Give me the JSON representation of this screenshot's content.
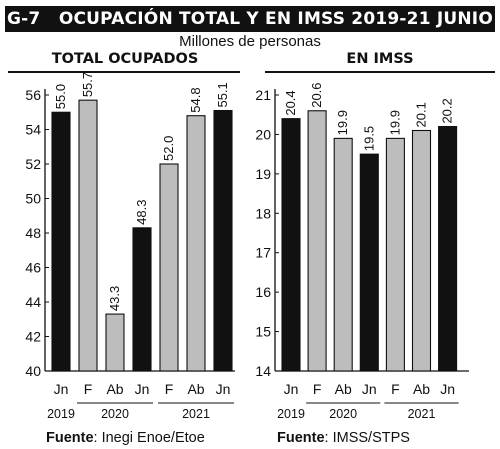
{
  "header": {
    "code": "G-7",
    "title": "OCUPACIÓN TOTAL Y EN IMSS 2019-21 JUNIO",
    "subtitle": "Millones de personas"
  },
  "colors": {
    "dark": "#111111",
    "light": "#bdbdbd",
    "outline": "#111111"
  },
  "chart_data": [
    {
      "type": "bar",
      "title": "TOTAL OCUPADOS",
      "categories": [
        "Jn",
        "F",
        "Ab",
        "Jn",
        "F",
        "Ab",
        "Jn"
      ],
      "values": [
        55.0,
        55.7,
        43.3,
        48.3,
        52.0,
        54.8,
        55.1
      ],
      "value_labels": [
        "55.0",
        "55.7",
        "43.3",
        "48.3",
        "52.0",
        "54.8",
        "55.1"
      ],
      "fill": [
        "dark",
        "light",
        "light",
        "dark",
        "light",
        "light",
        "dark"
      ],
      "ylim": [
        40,
        56
      ],
      "yticks": [
        40,
        42,
        44,
        46,
        48,
        50,
        52,
        54,
        56
      ],
      "year_groups": [
        {
          "label": "2019",
          "from": 0,
          "to": 0
        },
        {
          "label": "2020",
          "from": 1,
          "to": 3
        },
        {
          "label": "2021",
          "from": 4,
          "to": 6
        }
      ],
      "source_label": "Fuente",
      "source_text": ": Inegi Enoe/Etoe"
    },
    {
      "type": "bar",
      "title": "EN IMSS",
      "categories": [
        "Jn",
        "F",
        "Ab",
        "Jn",
        "F",
        "Ab",
        "Jn"
      ],
      "values": [
        20.4,
        20.6,
        19.9,
        19.5,
        19.9,
        20.1,
        20.2
      ],
      "value_labels": [
        "20.4",
        "20.6",
        "19.9",
        "19.5",
        "19.9",
        "20.1",
        "20.2"
      ],
      "fill": [
        "dark",
        "light",
        "light",
        "dark",
        "light",
        "light",
        "dark"
      ],
      "ylim": [
        14,
        21
      ],
      "yticks": [
        14,
        15,
        16,
        17,
        18,
        19,
        20,
        21
      ],
      "year_groups": [
        {
          "label": "2019",
          "from": 0,
          "to": 0
        },
        {
          "label": "2020",
          "from": 1,
          "to": 3
        },
        {
          "label": "2021",
          "from": 4,
          "to": 6
        }
      ],
      "source_label": "Fuente",
      "source_text": ": IMSS/STPS"
    }
  ]
}
